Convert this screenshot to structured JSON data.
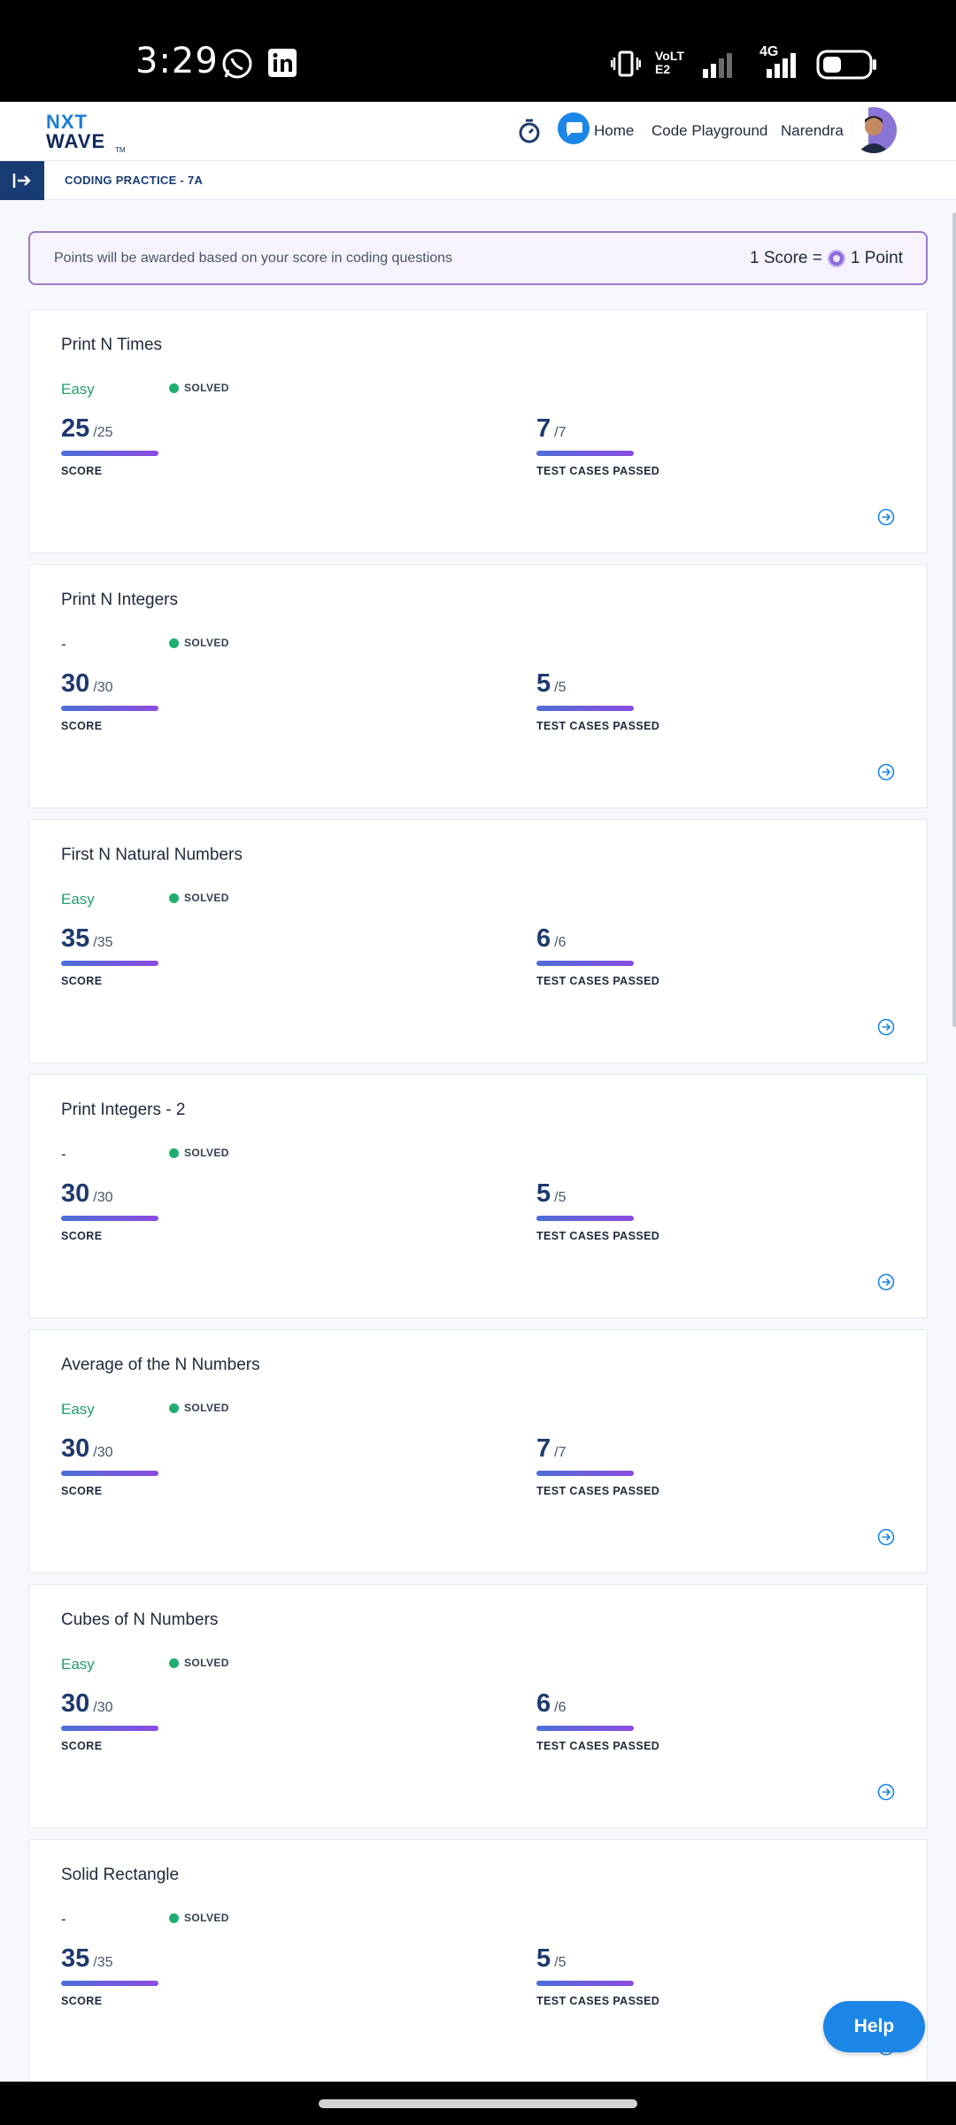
{
  "status_bar": {
    "time": "3:29",
    "network_label": "VoLTE2",
    "network_type": "4G"
  },
  "header": {
    "logo_line1": "NXT",
    "logo_line2": "WAVE",
    "logo_tm": "TM",
    "nav": {
      "home": "Home",
      "playground": "Code Playground",
      "user": "Narendra"
    }
  },
  "subheader": {
    "breadcrumb": "CODING PRACTICE - 7A"
  },
  "banner": {
    "message": "Points will be awarded based on your score in coding questions",
    "points_left": "1 Score =",
    "points_right": "1 Point"
  },
  "labels": {
    "score": "SCORE",
    "tests": "TEST CASES PASSED",
    "solved": "SOLVED"
  },
  "questions": [
    {
      "title": "Print N Times",
      "difficulty": "Easy",
      "score": "25",
      "score_max": "/25",
      "tests": "7",
      "tests_max": "/7"
    },
    {
      "title": "Print N Integers",
      "difficulty": "-",
      "score": "30",
      "score_max": "/30",
      "tests": "5",
      "tests_max": "/5"
    },
    {
      "title": "First N Natural Numbers",
      "difficulty": "Easy",
      "score": "35",
      "score_max": "/35",
      "tests": "6",
      "tests_max": "/6"
    },
    {
      "title": "Print Integers - 2",
      "difficulty": "-",
      "score": "30",
      "score_max": "/30",
      "tests": "5",
      "tests_max": "/5"
    },
    {
      "title": "Average of the N Numbers",
      "difficulty": "Easy",
      "score": "30",
      "score_max": "/30",
      "tests": "7",
      "tests_max": "/7"
    },
    {
      "title": "Cubes of N Numbers",
      "difficulty": "Easy",
      "score": "30",
      "score_max": "/30",
      "tests": "6",
      "tests_max": "/6"
    },
    {
      "title": "Solid Rectangle",
      "difficulty": "-",
      "score": "35",
      "score_max": "/35",
      "tests": "5",
      "tests_max": "/5"
    }
  ],
  "help_button": "Help",
  "colors": {
    "accent": "#183b73",
    "easy": "#22a06b",
    "solved_dot": "#1fae71",
    "banner_border": "#9a7ac9",
    "help": "#1c86e6"
  }
}
